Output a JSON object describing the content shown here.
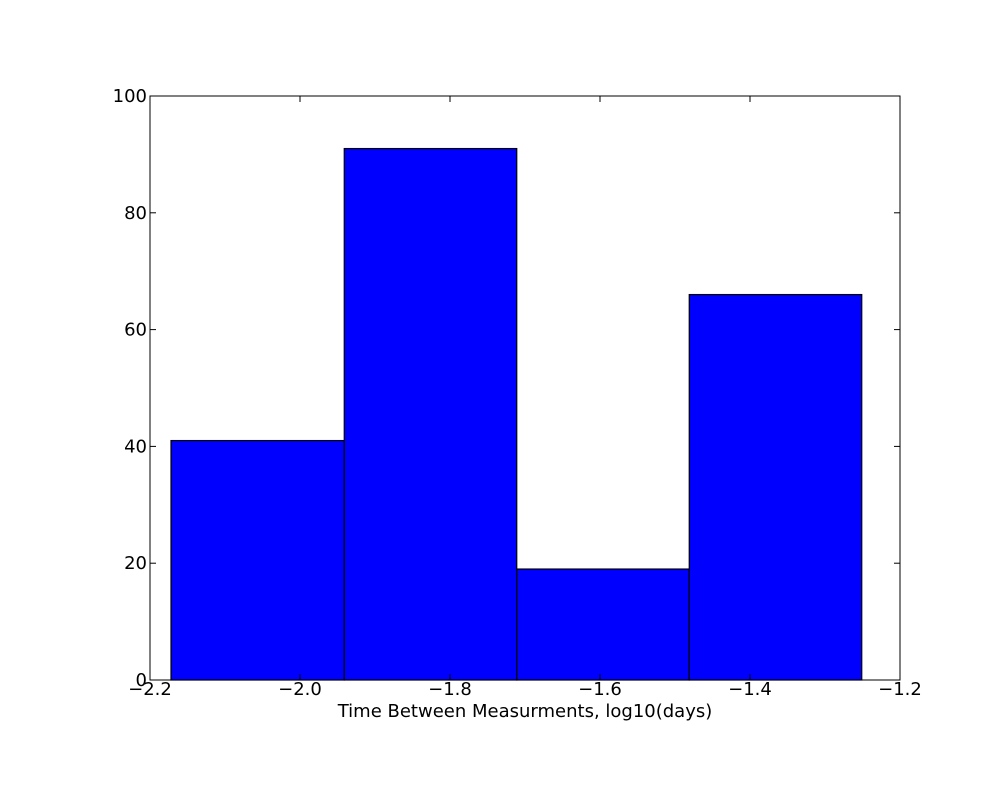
{
  "chart_data": {
    "type": "bar",
    "title": "",
    "xlabel": "Time Between Measurments, log10(days)",
    "ylabel": "",
    "xlim": [
      -2.2,
      -1.2
    ],
    "ylim": [
      0,
      100
    ],
    "x_ticks": [
      -2.2,
      -2.0,
      -1.8,
      -1.6,
      -1.4,
      -1.2
    ],
    "x_tick_labels": [
      "−2.2",
      "−2.0",
      "−1.8",
      "−1.6",
      "−1.4",
      "−1.2"
    ],
    "y_ticks": [
      0,
      20,
      40,
      60,
      80,
      100
    ],
    "y_tick_labels": [
      "0",
      "20",
      "40",
      "60",
      "80",
      "100"
    ],
    "bins": [
      {
        "start": -2.172,
        "end": -1.941,
        "value": 41
      },
      {
        "start": -1.941,
        "end": -1.711,
        "value": 91
      },
      {
        "start": -1.711,
        "end": -1.481,
        "value": 19
      },
      {
        "start": -1.481,
        "end": -1.251,
        "value": 66
      }
    ],
    "bar_color": "#0000ff",
    "edge_color": "#000000",
    "grid": false
  }
}
